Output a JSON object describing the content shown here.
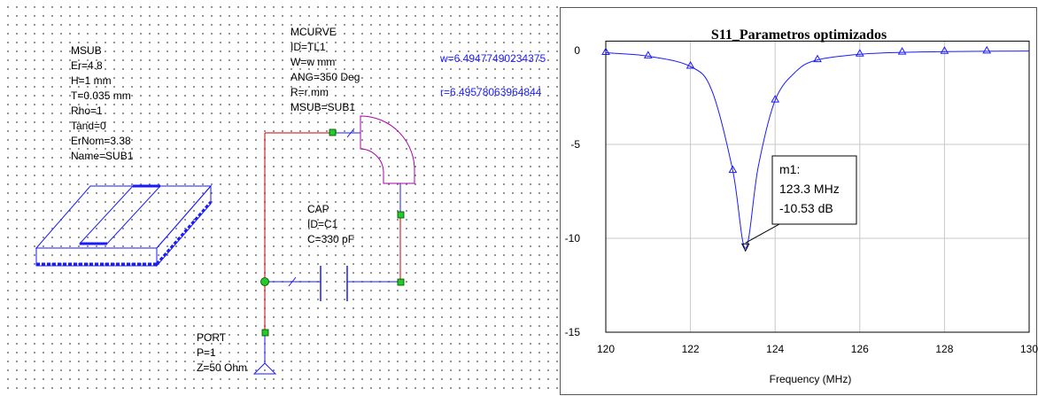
{
  "schematic": {
    "msub": {
      "title": "MSUB",
      "params": [
        "Er=4.8",
        "H=1 mm",
        "T=0.035 mm",
        "Rho=1",
        "Tand=0",
        "ErNom=3.38",
        "Name=SUB1"
      ]
    },
    "mcurve": {
      "title": "MCURVE",
      "params": [
        "ID=TL1",
        "W=w mm",
        "ANG=350 Deg",
        "R=r mm",
        "MSUB=SUB1"
      ]
    },
    "cap": {
      "title": "CAP",
      "params": [
        "ID=C1",
        "C=330 pF"
      ]
    },
    "port": {
      "title": "PORT",
      "params": [
        "P=1",
        "Z=50 Ohm"
      ]
    },
    "variables": {
      "w": "w=6.49477490234375",
      "r": "r=6.49578063964844"
    },
    "colors": {
      "wire": "#cc0000",
      "element": "#1a1aff",
      "curve": "#aa00aa",
      "node": "#22cc22"
    }
  },
  "chart_data": {
    "type": "line",
    "title": "S11_Parametros optimizados",
    "xlabel": "Frequency (MHz)",
    "ylabel": "",
    "xlim": [
      120,
      130
    ],
    "ylim": [
      -15,
      0.5
    ],
    "xticks": [
      "120",
      "122",
      "124",
      "126",
      "128",
      "130"
    ],
    "yticks": [
      "0",
      "-5",
      "-10",
      "-15"
    ],
    "grid": true,
    "series": [
      {
        "color": "#1a1aff",
        "x": [
          120,
          121,
          122,
          122.5,
          123,
          123.3,
          123.6,
          124,
          124.5,
          125,
          126,
          127,
          128,
          129,
          130
        ],
        "y": [
          -0.12,
          -0.3,
          -0.85,
          -2.1,
          -6.4,
          -10.53,
          -6.2,
          -2.65,
          -1.1,
          -0.5,
          -0.2,
          -0.1,
          -0.06,
          -0.04,
          -0.03
        ],
        "markers_x": [
          120,
          121,
          122,
          123,
          124,
          125,
          126,
          127,
          128,
          129
        ]
      }
    ],
    "marker": {
      "label": "m1:",
      "freq": "123.3 MHz",
      "value": "-10.53 dB",
      "x": 123.3,
      "y": -10.53
    }
  }
}
